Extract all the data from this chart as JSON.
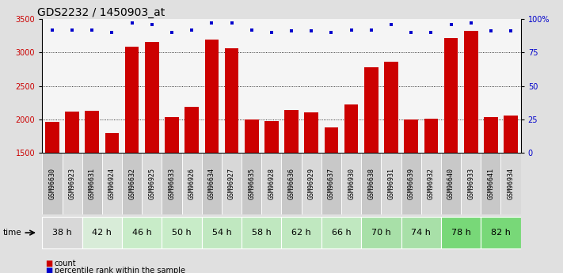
{
  "title": "GDS2232 / 1450903_at",
  "samples": [
    "GSM96630",
    "GSM96923",
    "GSM96631",
    "GSM96924",
    "GSM96632",
    "GSM96925",
    "GSM96633",
    "GSM96926",
    "GSM96634",
    "GSM96927",
    "GSM96635",
    "GSM96928",
    "GSM96636",
    "GSM96929",
    "GSM96637",
    "GSM96930",
    "GSM96638",
    "GSM96931",
    "GSM96639",
    "GSM96932",
    "GSM96640",
    "GSM96933",
    "GSM96641",
    "GSM96934"
  ],
  "counts": [
    1960,
    2120,
    2130,
    1800,
    3090,
    3160,
    2040,
    2190,
    3200,
    3060,
    2000,
    1970,
    2140,
    2110,
    1880,
    2220,
    2780,
    2860,
    2000,
    2010,
    3220,
    3320,
    2030,
    2060
  ],
  "percentile_ranks": [
    92,
    92,
    92,
    90,
    97,
    96,
    90,
    92,
    97,
    97,
    92,
    90,
    91,
    91,
    90,
    92,
    92,
    96,
    90,
    90,
    96,
    97,
    91,
    91
  ],
  "time_groups": [
    {
      "label": "38 h",
      "indices": [
        0,
        1
      ]
    },
    {
      "label": "42 h",
      "indices": [
        2,
        3
      ]
    },
    {
      "label": "46 h",
      "indices": [
        4,
        5
      ]
    },
    {
      "label": "50 h",
      "indices": [
        6,
        7
      ]
    },
    {
      "label": "54 h",
      "indices": [
        8,
        9
      ]
    },
    {
      "label": "58 h",
      "indices": [
        10,
        11
      ]
    },
    {
      "label": "62 h",
      "indices": [
        12,
        13
      ]
    },
    {
      "label": "66 h",
      "indices": [
        14,
        15
      ]
    },
    {
      "label": "70 h",
      "indices": [
        16,
        17
      ]
    },
    {
      "label": "74 h",
      "indices": [
        18,
        19
      ]
    },
    {
      "label": "78 h",
      "indices": [
        20,
        21
      ]
    },
    {
      "label": "82 h",
      "indices": [
        22,
        23
      ]
    }
  ],
  "time_group_colors": [
    "#d8d8d8",
    "#d8ecd8",
    "#c8ecc8",
    "#c8ecc8",
    "#c0e8c0",
    "#c0e8c0",
    "#c0e8c0",
    "#c0e8c0",
    "#a8e0a8",
    "#a8e0a8",
    "#78d878",
    "#78d878"
  ],
  "ylim_left": [
    1500,
    3500
  ],
  "ylim_right": [
    0,
    100
  ],
  "yticks_left": [
    1500,
    2000,
    2500,
    3000,
    3500
  ],
  "yticks_right": [
    0,
    25,
    50,
    75,
    100
  ],
  "ytick_right_labels": [
    "0",
    "25",
    "50",
    "75",
    "100%"
  ],
  "bar_color": "#cc0000",
  "dot_color": "#0000cc",
  "bg_color": "#e0e0e0",
  "plot_bg": "#f5f5f5",
  "sample_bg_odd": "#c8c8c8",
  "sample_bg_even": "#d8d8d8",
  "title_fontsize": 10,
  "tick_fontsize": 7,
  "legend_fontsize": 7.5,
  "time_label_fontsize": 8,
  "sample_fontsize": 6
}
